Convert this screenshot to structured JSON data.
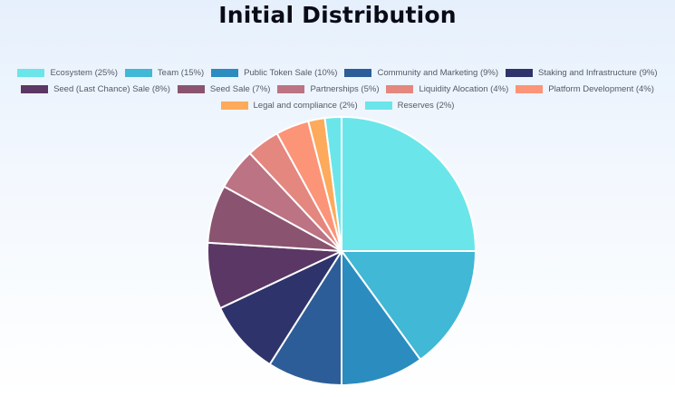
{
  "chart_data": {
    "type": "pie",
    "title": "Initial Distribution",
    "legend_position": "top",
    "slices": [
      {
        "label": "Ecosystem (25%)",
        "value": 25,
        "color": "#6ae6ea"
      },
      {
        "label": "Team (15%)",
        "value": 15,
        "color": "#40b8d6"
      },
      {
        "label": "Public Token Sale (10%)",
        "value": 10,
        "color": "#2b8cc0"
      },
      {
        "label": "Community and Marketing (9%)",
        "value": 9,
        "color": "#2d5d98"
      },
      {
        "label": "Staking and Infrastructure (9%)",
        "value": 9,
        "color": "#2e346b"
      },
      {
        "label": "Seed (Last Chance) Sale (8%)",
        "value": 8,
        "color": "#5b3765"
      },
      {
        "label": "Seed Sale (7%)",
        "value": 7,
        "color": "#8a5470"
      },
      {
        "label": "Partnerships (5%)",
        "value": 5,
        "color": "#bc7383"
      },
      {
        "label": "Liquidity Alocation (4%)",
        "value": 4,
        "color": "#e4877f"
      },
      {
        "label": "Platform Development (4%)",
        "value": 4,
        "color": "#fc9478"
      },
      {
        "label": "Legal and compliance (2%)",
        "value": 2,
        "color": "#fdaa5c"
      },
      {
        "label": "Reserves (2%)",
        "value": 2,
        "color": "#6ae6ea"
      }
    ]
  }
}
